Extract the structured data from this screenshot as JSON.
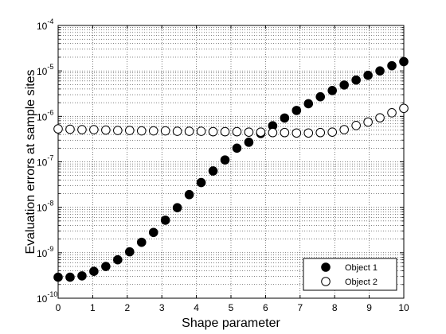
{
  "chart_data": {
    "type": "scatter",
    "xlabel": "Shape parameter",
    "ylabel": "Evaluation errors at sample sites",
    "xlim": [
      0,
      10
    ],
    "ylim": [
      1e-10,
      0.0001
    ],
    "yscale": "log",
    "grid": "dotted, major and minor",
    "legend_position": "bottom-right",
    "x_ticks": [
      "0",
      "1",
      "2",
      "3",
      "4",
      "5",
      "6",
      "7",
      "8",
      "9",
      "10"
    ],
    "y_ticks": [
      {
        "base": "10",
        "exp": "-10"
      },
      {
        "base": "10",
        "exp": "-9"
      },
      {
        "base": "10",
        "exp": "-8"
      },
      {
        "base": "10",
        "exp": "-7"
      },
      {
        "base": "10",
        "exp": "-6"
      },
      {
        "base": "10",
        "exp": "-5"
      },
      {
        "base": "10",
        "exp": "-4"
      }
    ],
    "series": [
      {
        "name": "Object 1",
        "marker": "filled-circle",
        "color": "#000000",
        "x": [
          0,
          0.345,
          0.69,
          1.034,
          1.379,
          1.724,
          2.069,
          2.414,
          2.759,
          3.103,
          3.448,
          3.793,
          4.138,
          4.483,
          4.828,
          5.172,
          5.517,
          5.862,
          6.207,
          6.552,
          6.897,
          7.241,
          7.586,
          7.931,
          8.276,
          8.621,
          8.966,
          9.31,
          9.655,
          10
        ],
        "y": [
          2.9e-10,
          2.9e-10,
          3.1e-10,
          3.9e-10,
          5e-10,
          7e-10,
          1.05e-09,
          1.7e-09,
          2.8e-09,
          5.2e-09,
          9.8e-09,
          1.9e-08,
          3.5e-08,
          6.3e-08,
          1.1e-07,
          2e-07,
          2.7e-07,
          4.2e-07,
          6.2e-07,
          9.2e-07,
          1.35e-06,
          1.9e-06,
          2.7e-06,
          3.7e-06,
          4.9e-06,
          6.3e-06,
          8e-06,
          1e-05,
          1.3e-05,
          1.6e-05
        ]
      },
      {
        "name": "Object 2",
        "marker": "open-circle",
        "color": "#000000",
        "x": [
          0,
          0.345,
          0.69,
          1.034,
          1.379,
          1.724,
          2.069,
          2.414,
          2.759,
          3.103,
          3.448,
          3.793,
          4.138,
          4.483,
          4.828,
          5.172,
          5.517,
          5.862,
          6.207,
          6.552,
          6.897,
          7.241,
          7.586,
          7.931,
          8.276,
          8.621,
          8.966,
          9.31,
          9.655,
          10
        ],
        "y": [
          5.3e-07,
          5.2e-07,
          5.1e-07,
          5.1e-07,
          5e-07,
          4.9e-07,
          4.9e-07,
          4.8e-07,
          4.8e-07,
          4.8e-07,
          4.7e-07,
          4.7e-07,
          4.7e-07,
          4.6e-07,
          4.6e-07,
          4.6e-07,
          4.5e-07,
          4.5e-07,
          4.4e-07,
          4.4e-07,
          4.3e-07,
          4.3e-07,
          4.4e-07,
          4.5e-07,
          5.1e-07,
          6.3e-07,
          7.5e-07,
          9.3e-07,
          1.2e-06,
          1.5e-06
        ]
      }
    ]
  }
}
